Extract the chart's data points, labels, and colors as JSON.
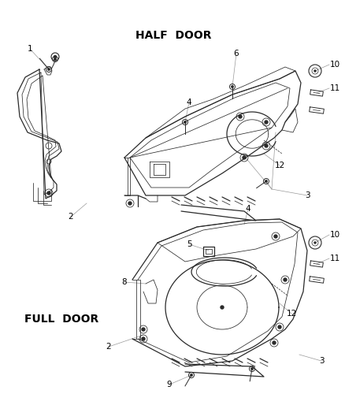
{
  "bg_color": "#ffffff",
  "line_color": "#2a2a2a",
  "label_color": "#000000",
  "leader_color": "#999999",
  "half_door_label": "HALF  DOOR",
  "full_door_label": "FULL  DOOR",
  "label_fontsize": 10,
  "number_fontsize": 7.5
}
